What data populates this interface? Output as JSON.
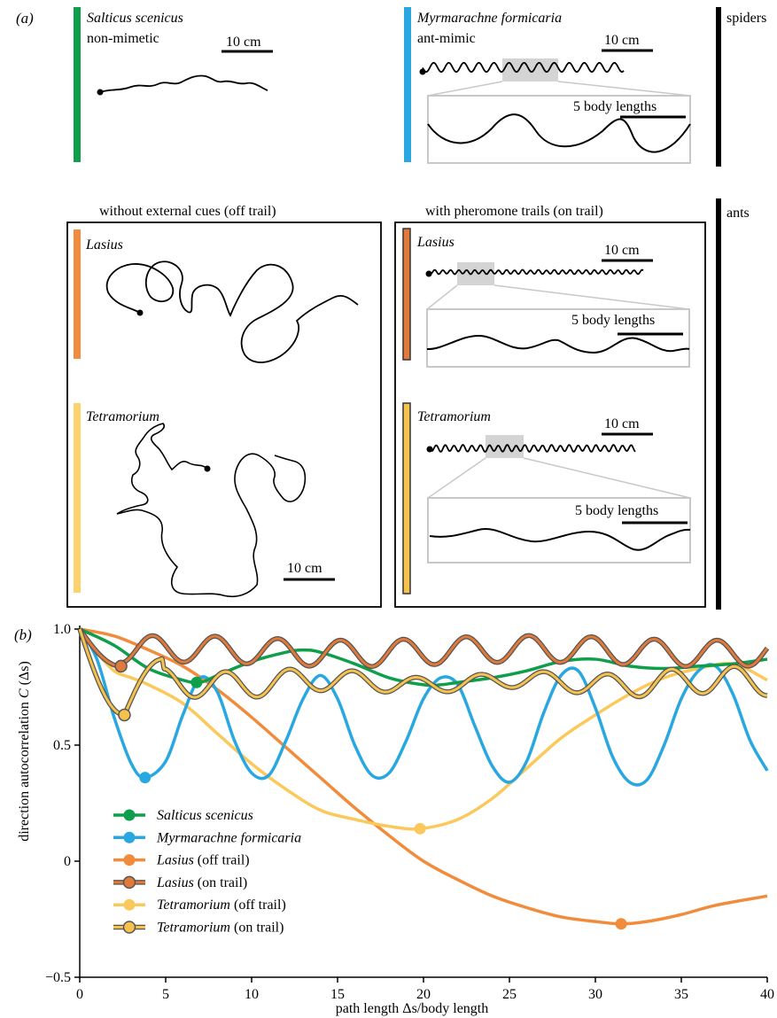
{
  "panel_a": {
    "label": "(a)",
    "spiders_label": "spiders",
    "ants_label": "ants",
    "scale_10cm": "10 cm",
    "scale_body": "5 body lengths",
    "off_trail_title": "without external cues (off trail)",
    "on_trail_title": "with pheromone trails (on trail)",
    "salticus": {
      "name": "Salticus scenicus",
      "desc": "non-mimetic"
    },
    "myrmarachne": {
      "name": "Myrmarachne formicaria",
      "desc": "ant-mimic"
    },
    "lasius": "Lasius",
    "tetramorium": "Tetramorium"
  },
  "panel_b": {
    "label": "(b)"
  },
  "chart_data": {
    "type": "line",
    "xlabel": "path length Δs/body length",
    "ylabel": "direction autocorrelation C (Δs)",
    "xlim": [
      0,
      40
    ],
    "ylim": [
      -0.5,
      1.0
    ],
    "xticks": [
      "0",
      "5",
      "10",
      "15",
      "20",
      "25",
      "30",
      "35",
      "40"
    ],
    "yticks": [
      "−0.5",
      "0",
      "0.5",
      "1.0"
    ],
    "legend_position": "lower-left",
    "series": [
      {
        "name": "Salticus scenicus",
        "name_suffix": "",
        "color": "#0f9e4a",
        "style": "solid",
        "marker": [
          6.8,
          0.77
        ],
        "x": [
          0,
          2,
          4,
          6,
          7,
          8,
          10,
          12,
          13,
          14,
          16,
          18,
          20,
          21,
          22,
          24,
          26,
          28,
          30,
          32,
          34,
          36,
          38,
          40
        ],
        "y": [
          1.0,
          0.93,
          0.83,
          0.78,
          0.77,
          0.8,
          0.86,
          0.9,
          0.91,
          0.9,
          0.85,
          0.79,
          0.76,
          0.76,
          0.77,
          0.79,
          0.82,
          0.86,
          0.87,
          0.84,
          0.83,
          0.84,
          0.85,
          0.87
        ]
      },
      {
        "name": "Myrmarachne formicaria",
        "name_suffix": "",
        "color": "#29a7e1",
        "style": "solid",
        "marker": [
          3.8,
          0.36
        ],
        "x": [
          0,
          1,
          2,
          3,
          3.8,
          5,
          6,
          7,
          8,
          9,
          10,
          11,
          12,
          13,
          14,
          15,
          16,
          17,
          18,
          19,
          20,
          21,
          22,
          23,
          24,
          25,
          26,
          27,
          28,
          29,
          30,
          31,
          32,
          33,
          34,
          35,
          36,
          37,
          38,
          39,
          40
        ],
        "y": [
          1.0,
          0.87,
          0.62,
          0.42,
          0.36,
          0.43,
          0.63,
          0.79,
          0.73,
          0.52,
          0.38,
          0.37,
          0.52,
          0.7,
          0.8,
          0.7,
          0.5,
          0.37,
          0.38,
          0.52,
          0.7,
          0.79,
          0.76,
          0.58,
          0.41,
          0.34,
          0.43,
          0.64,
          0.8,
          0.82,
          0.66,
          0.45,
          0.34,
          0.35,
          0.5,
          0.7,
          0.82,
          0.84,
          0.72,
          0.52,
          0.39
        ]
      },
      {
        "name": "Lasius",
        "name_suffix": " (off trail)",
        "color": "#f08c3c",
        "style": "solid",
        "marker": [
          31.5,
          -0.27
        ],
        "x": [
          0,
          2,
          4,
          6,
          8,
          10,
          12,
          14,
          16,
          18,
          20,
          22,
          24,
          26,
          28,
          30,
          31.5,
          33,
          35,
          37,
          40
        ],
        "y": [
          1.0,
          0.97,
          0.91,
          0.84,
          0.74,
          0.62,
          0.49,
          0.36,
          0.23,
          0.11,
          0.0,
          -0.08,
          -0.15,
          -0.2,
          -0.24,
          -0.26,
          -0.27,
          -0.26,
          -0.23,
          -0.19,
          -0.15
        ]
      },
      {
        "name": "Lasius",
        "name_suffix": " (on trail)",
        "color": "#df7a3a",
        "style": "double",
        "marker": [
          2.4,
          0.84
        ],
        "func": "lasius_on"
      },
      {
        "name": "Tetramorium",
        "name_suffix": " (off trail)",
        "color": "#fbc95b",
        "style": "solid",
        "marker": [
          19.8,
          0.14
        ],
        "x": [
          0,
          1,
          2,
          3,
          4,
          6,
          8,
          10,
          12,
          14,
          16,
          18,
          19.8,
          22,
          24,
          26,
          28,
          30,
          32,
          34,
          36,
          38,
          40
        ],
        "y": [
          1.0,
          0.9,
          0.82,
          0.79,
          0.76,
          0.68,
          0.55,
          0.42,
          0.31,
          0.22,
          0.18,
          0.15,
          0.14,
          0.18,
          0.27,
          0.4,
          0.53,
          0.63,
          0.72,
          0.79,
          0.83,
          0.85,
          0.78
        ]
      },
      {
        "name": "Tetramorium",
        "name_suffix": " (on trail)",
        "color": "#f5c24e",
        "style": "double",
        "marker": [
          2.6,
          0.63
        ],
        "func": "tetramorium_on"
      }
    ]
  }
}
